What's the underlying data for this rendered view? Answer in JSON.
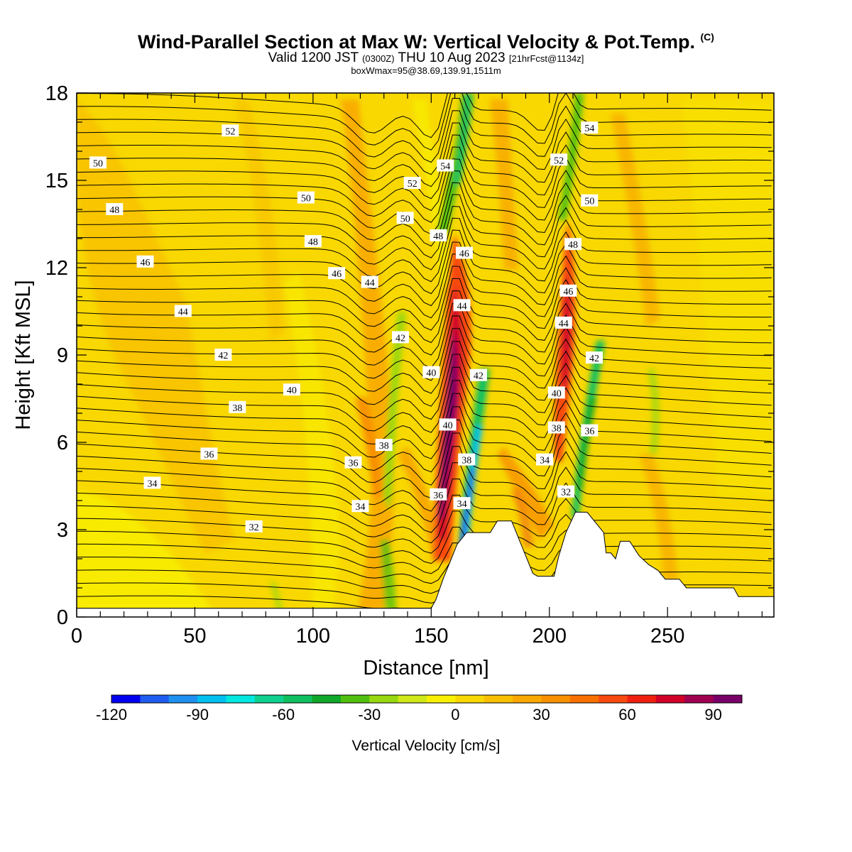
{
  "header": {
    "title": "Wind-Parallel Section at Max W: Vertical Velocity & Pot.Temp.",
    "copyright": "(C)",
    "valid_prefix": "Valid 1200 JST",
    "valid_utc": "(0300Z)",
    "valid_date": "THU 10 Aug 2023",
    "forecast": "[21hrFcst@1134z]",
    "boxwmax": "boxWmax=95@38.69,139.91,1511m"
  },
  "chart_data": {
    "type": "heatmap",
    "xlabel": "Distance [nm]",
    "ylabel": "Height [Kft MSL]",
    "xlim": [
      0,
      295
    ],
    "ylim": [
      0,
      18
    ],
    "x_ticks": [
      0,
      50,
      100,
      150,
      200,
      250
    ],
    "y_ticks": [
      0,
      3,
      6,
      9,
      12,
      15,
      18
    ],
    "colorbar": {
      "title": "Vertical Velocity [cm/s]",
      "min": -120,
      "max": 100,
      "step": 10,
      "tick_values": [
        -120,
        -90,
        -60,
        -30,
        0,
        30,
        60,
        90
      ],
      "colors": [
        "#0000f0",
        "#1f5cf0",
        "#1e90f0",
        "#00c0f0",
        "#00e8e0",
        "#10d090",
        "#10c060",
        "#10a828",
        "#50c010",
        "#98d810",
        "#d0e818",
        "#f8f000",
        "#f8d800",
        "#f8c000",
        "#f8a800",
        "#f89000",
        "#f87000",
        "#f84a10",
        "#f02010",
        "#d00028",
        "#a00050",
        "#780068"
      ]
    },
    "theta_contours": {
      "units": "degC",
      "labels": [
        {
          "x": 65,
          "y": 16.7,
          "text": "52"
        },
        {
          "x": 9,
          "y": 15.6,
          "text": "50"
        },
        {
          "x": 16,
          "y": 14.0,
          "text": "48"
        },
        {
          "x": 29,
          "y": 12.2,
          "text": "46"
        },
        {
          "x": 45,
          "y": 10.5,
          "text": "44"
        },
        {
          "x": 62,
          "y": 9.0,
          "text": "42"
        },
        {
          "x": 91,
          "y": 7.8,
          "text": "40"
        },
        {
          "x": 68,
          "y": 7.2,
          "text": "38"
        },
        {
          "x": 56,
          "y": 5.6,
          "text": "36"
        },
        {
          "x": 32,
          "y": 4.6,
          "text": "34"
        },
        {
          "x": 75,
          "y": 3.1,
          "text": "32"
        },
        {
          "x": 97,
          "y": 14.4,
          "text": "50"
        },
        {
          "x": 100,
          "y": 12.9,
          "text": "48"
        },
        {
          "x": 110,
          "y": 11.8,
          "text": "46"
        },
        {
          "x": 124,
          "y": 11.5,
          "text": "44"
        },
        {
          "x": 137,
          "y": 9.6,
          "text": "42"
        },
        {
          "x": 150,
          "y": 8.4,
          "text": "40"
        },
        {
          "x": 130,
          "y": 5.9,
          "text": "38"
        },
        {
          "x": 117,
          "y": 5.3,
          "text": "36"
        },
        {
          "x": 120,
          "y": 3.8,
          "text": "34"
        },
        {
          "x": 142,
          "y": 14.9,
          "text": "52"
        },
        {
          "x": 139,
          "y": 13.7,
          "text": "50"
        },
        {
          "x": 153,
          "y": 13.1,
          "text": "48"
        },
        {
          "x": 156,
          "y": 15.5,
          "text": "54"
        },
        {
          "x": 164,
          "y": 12.5,
          "text": "46"
        },
        {
          "x": 163,
          "y": 10.7,
          "text": "44"
        },
        {
          "x": 170,
          "y": 8.3,
          "text": "42"
        },
        {
          "x": 157,
          "y": 6.6,
          "text": "40"
        },
        {
          "x": 165,
          "y": 5.4,
          "text": "38"
        },
        {
          "x": 153,
          "y": 4.2,
          "text": "36"
        },
        {
          "x": 163,
          "y": 3.9,
          "text": "34"
        },
        {
          "x": 217,
          "y": 16.8,
          "text": "54"
        },
        {
          "x": 204,
          "y": 15.7,
          "text": "52"
        },
        {
          "x": 217,
          "y": 14.3,
          "text": "50"
        },
        {
          "x": 210,
          "y": 12.8,
          "text": "48"
        },
        {
          "x": 208,
          "y": 11.2,
          "text": "46"
        },
        {
          "x": 206,
          "y": 10.1,
          "text": "44"
        },
        {
          "x": 219,
          "y": 8.9,
          "text": "42"
        },
        {
          "x": 203,
          "y": 7.7,
          "text": "40"
        },
        {
          "x": 203,
          "y": 6.5,
          "text": "38"
        },
        {
          "x": 217,
          "y": 6.4,
          "text": "36"
        },
        {
          "x": 198,
          "y": 5.4,
          "text": "34"
        },
        {
          "x": 207,
          "y": 4.3,
          "text": "32"
        }
      ]
    },
    "terrain": [
      [
        0,
        0.3
      ],
      [
        150,
        0.3
      ],
      [
        152,
        0.6
      ],
      [
        155,
        1.3
      ],
      [
        158,
        1.9
      ],
      [
        161,
        2.5
      ],
      [
        165,
        2.9
      ],
      [
        175,
        2.9
      ],
      [
        178,
        3.3
      ],
      [
        184,
        3.3
      ],
      [
        186,
        2.9
      ],
      [
        188,
        2.5
      ],
      [
        190,
        2.1
      ],
      [
        193,
        1.5
      ],
      [
        195,
        1.4
      ],
      [
        202,
        1.4
      ],
      [
        204,
        2.1
      ],
      [
        207,
        2.9
      ],
      [
        211,
        3.6
      ],
      [
        216,
        3.6
      ],
      [
        220,
        3.2
      ],
      [
        223,
        2.9
      ],
      [
        224,
        2.2
      ],
      [
        226,
        2.2
      ],
      [
        228,
        2.0
      ],
      [
        230,
        2.6
      ],
      [
        234,
        2.6
      ],
      [
        238,
        2.1
      ],
      [
        242,
        1.8
      ],
      [
        246,
        1.6
      ],
      [
        249,
        1.3
      ],
      [
        255,
        1.3
      ],
      [
        258,
        1.0
      ],
      [
        265,
        1.0
      ],
      [
        278,
        1.0
      ],
      [
        280,
        0.7
      ],
      [
        295,
        0.7
      ]
    ]
  }
}
